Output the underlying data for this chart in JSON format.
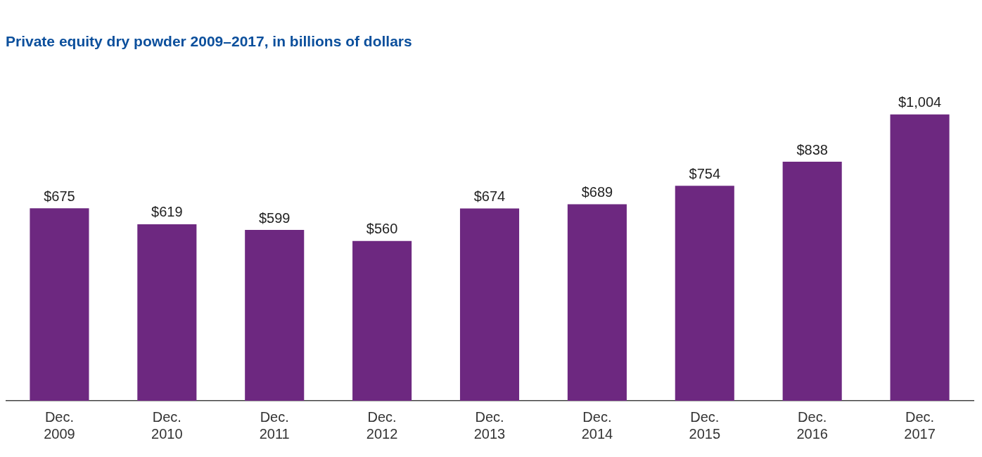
{
  "chart_data": {
    "type": "bar",
    "title": "Private equity dry powder 2009–2017, in billions of dollars",
    "categories": [
      "Dec. 2009",
      "Dec. 2010",
      "Dec. 2011",
      "Dec. 2012",
      "Dec. 2013",
      "Dec. 2014",
      "Dec. 2015",
      "Dec. 2016",
      "Dec. 2017"
    ],
    "values": [
      675,
      619,
      599,
      560,
      674,
      689,
      754,
      838,
      1004
    ],
    "value_labels": [
      "$675",
      "$619",
      "$599",
      "$560",
      "$674",
      "$689",
      "$754",
      "$838",
      "$1,004"
    ],
    "color": "#6d2880",
    "grid": false,
    "legend": false
  }
}
